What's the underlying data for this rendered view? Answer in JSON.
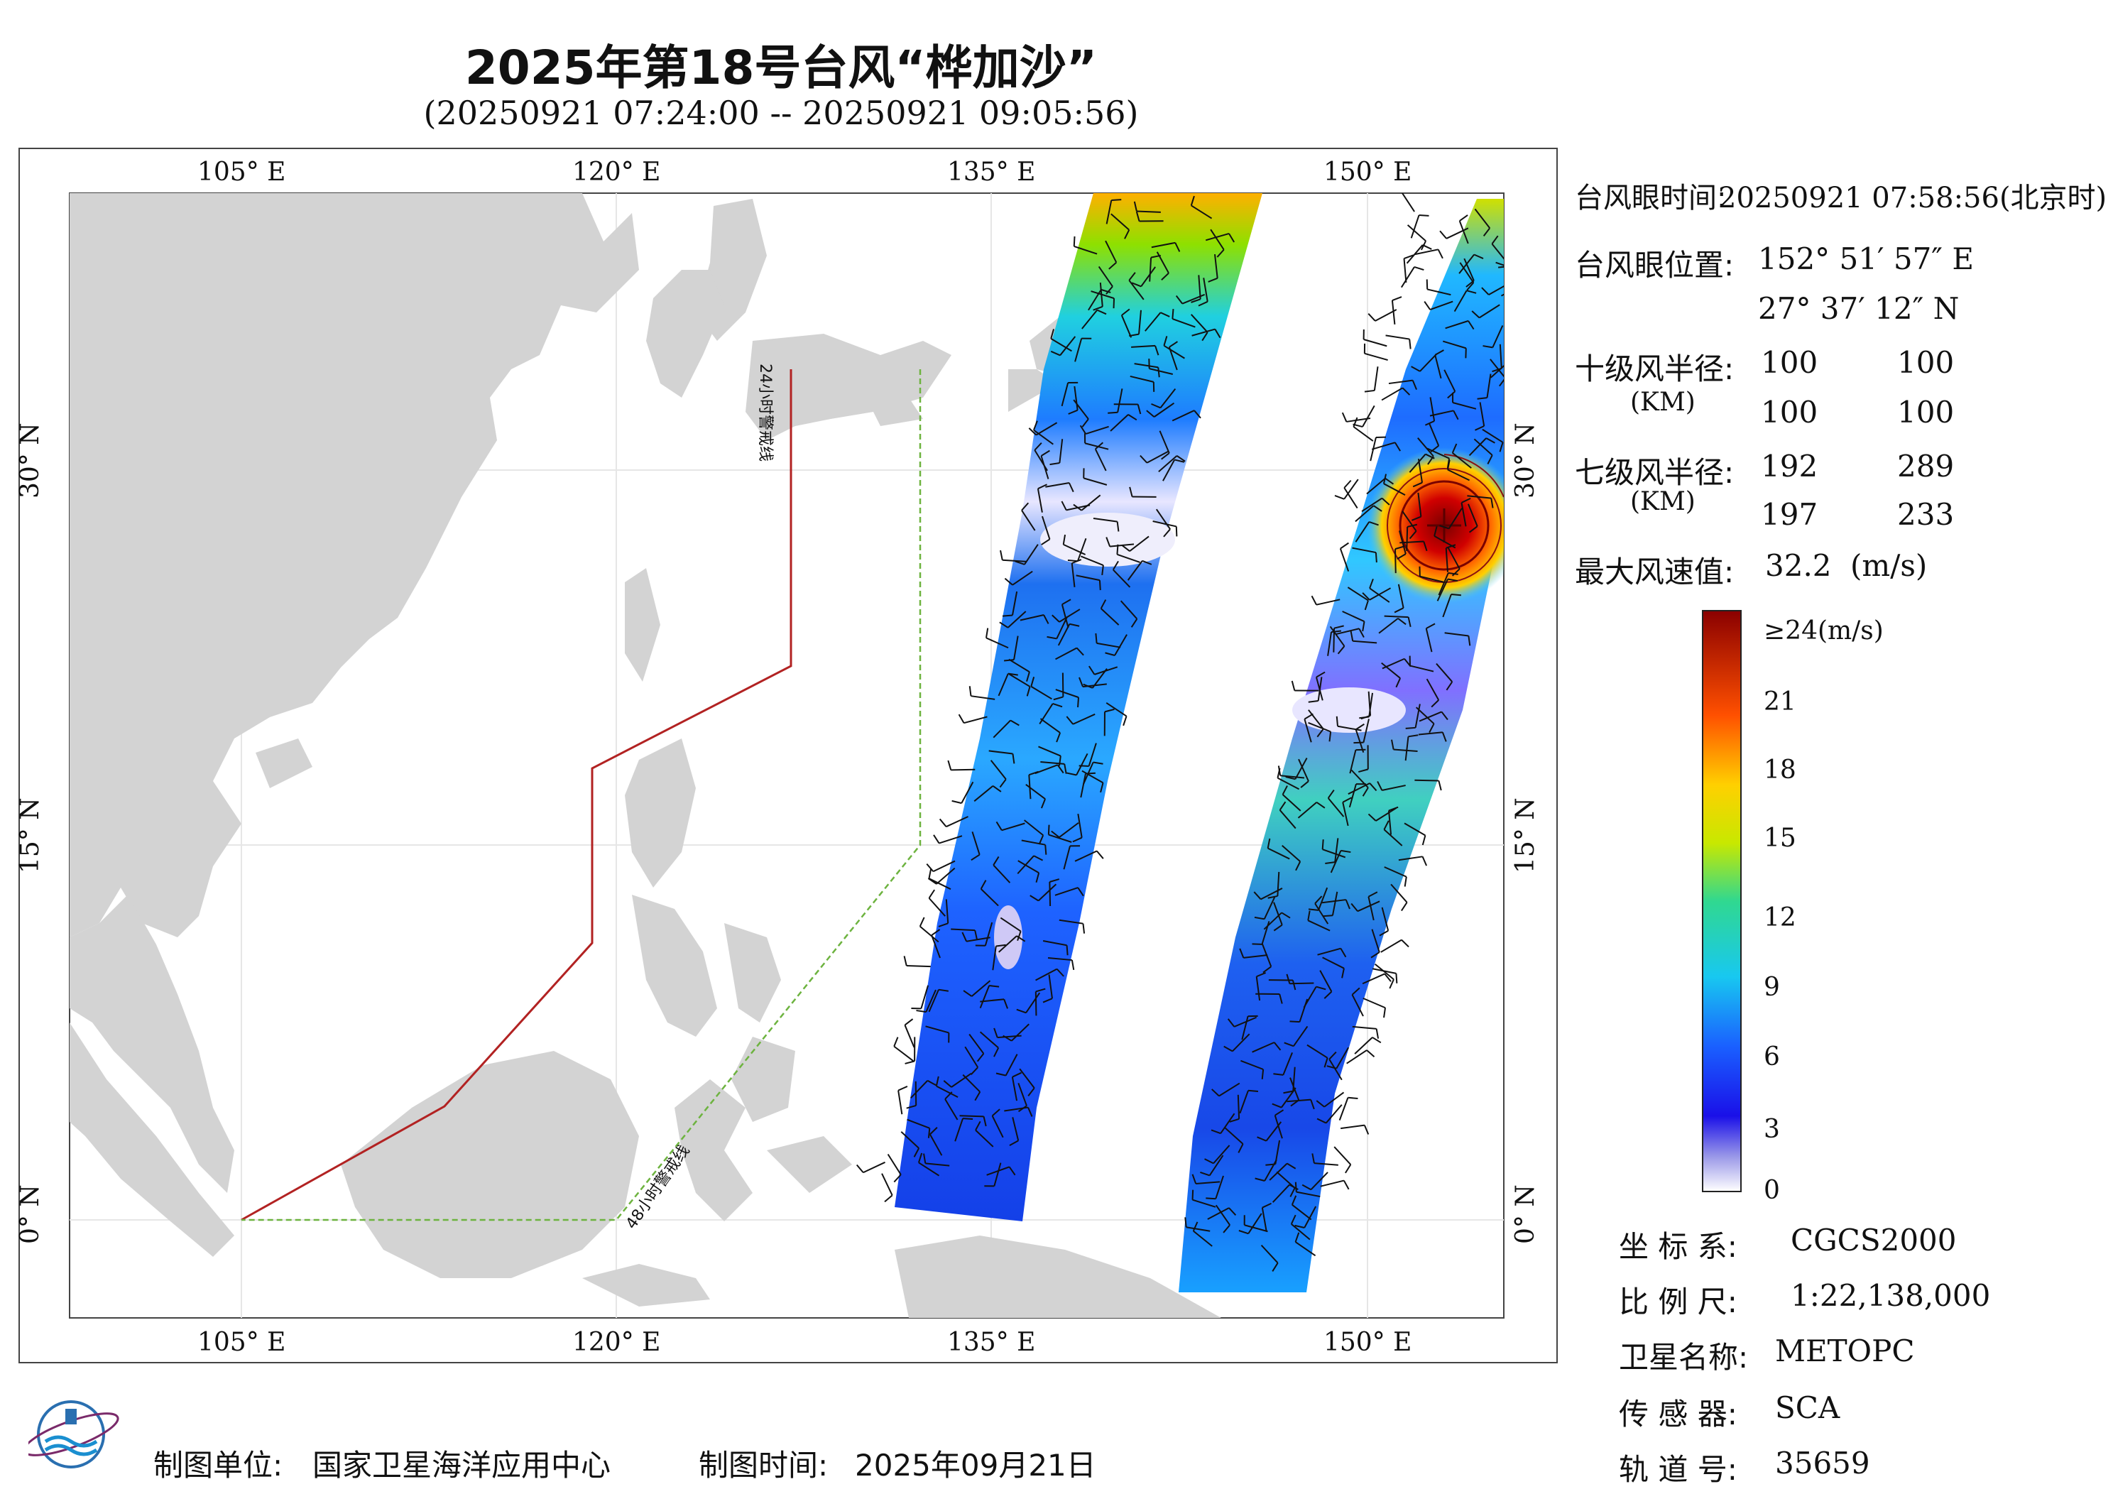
{
  "header": {
    "title": "2025年第18号台风“桦加沙”",
    "subtitle": "(20250921 07:24:00 -- 20250921 09:05:56)"
  },
  "map": {
    "lon_top": [
      "105° E",
      "120° E",
      "135° E",
      "150° E"
    ],
    "lon_bottom": [
      "105° E",
      "120° E",
      "135° E",
      "150° E"
    ],
    "lat_left": [
      "30° N",
      "15° N",
      "0° N"
    ],
    "lat_right": [
      "30° N",
      "15° N",
      "0° N"
    ],
    "warning_24h": "24小时警戒线",
    "warning_48h": "48小时警戒线",
    "colors": {
      "land": "#d3d3d3",
      "sea": "#ffffff",
      "warn24": "#b22222",
      "warn48": "#6db33f"
    }
  },
  "info": {
    "eye_time_label": "台风眼时间:",
    "eye_time_value": "20250921 07:58:56(北京时)",
    "eye_pos_label": "台风眼位置:",
    "eye_lon": "152° 51′ 57″ E",
    "eye_lat": "27° 37′ 12″ N",
    "r10_label": "十级风半径:",
    "r10_unit": "(KM)",
    "r10_values": [
      "100",
      "100",
      "100",
      "100"
    ],
    "r7_label": "七级风半径:",
    "r7_unit": "(KM)",
    "r7_values": [
      "192",
      "289",
      "197",
      "233"
    ],
    "max_wind_label": "最大风速值:",
    "max_wind_value": "32.2",
    "max_wind_unit": "(m/s)"
  },
  "colorbar": {
    "top_label": "≥24(m/s)",
    "ticks": [
      "21",
      "18",
      "15",
      "12",
      "9",
      "6",
      "3",
      "0"
    ]
  },
  "meta": {
    "crs_label": "坐 标 系:",
    "crs_value": "CGCS2000",
    "scale_label": "比 例 尺:",
    "scale_value": "1:22,138,000",
    "sat_label": "卫星名称:",
    "sat_value": "METOPC",
    "sensor_label": "传 感 器:",
    "sensor_value": "SCA",
    "orbit_label": "轨 道 号:",
    "orbit_value": "35659"
  },
  "footer": {
    "producer_label": "制图单位:",
    "producer_value": "国家卫星海洋应用中心",
    "date_label": "制图时间:",
    "date_value": "2025年09月21日"
  }
}
